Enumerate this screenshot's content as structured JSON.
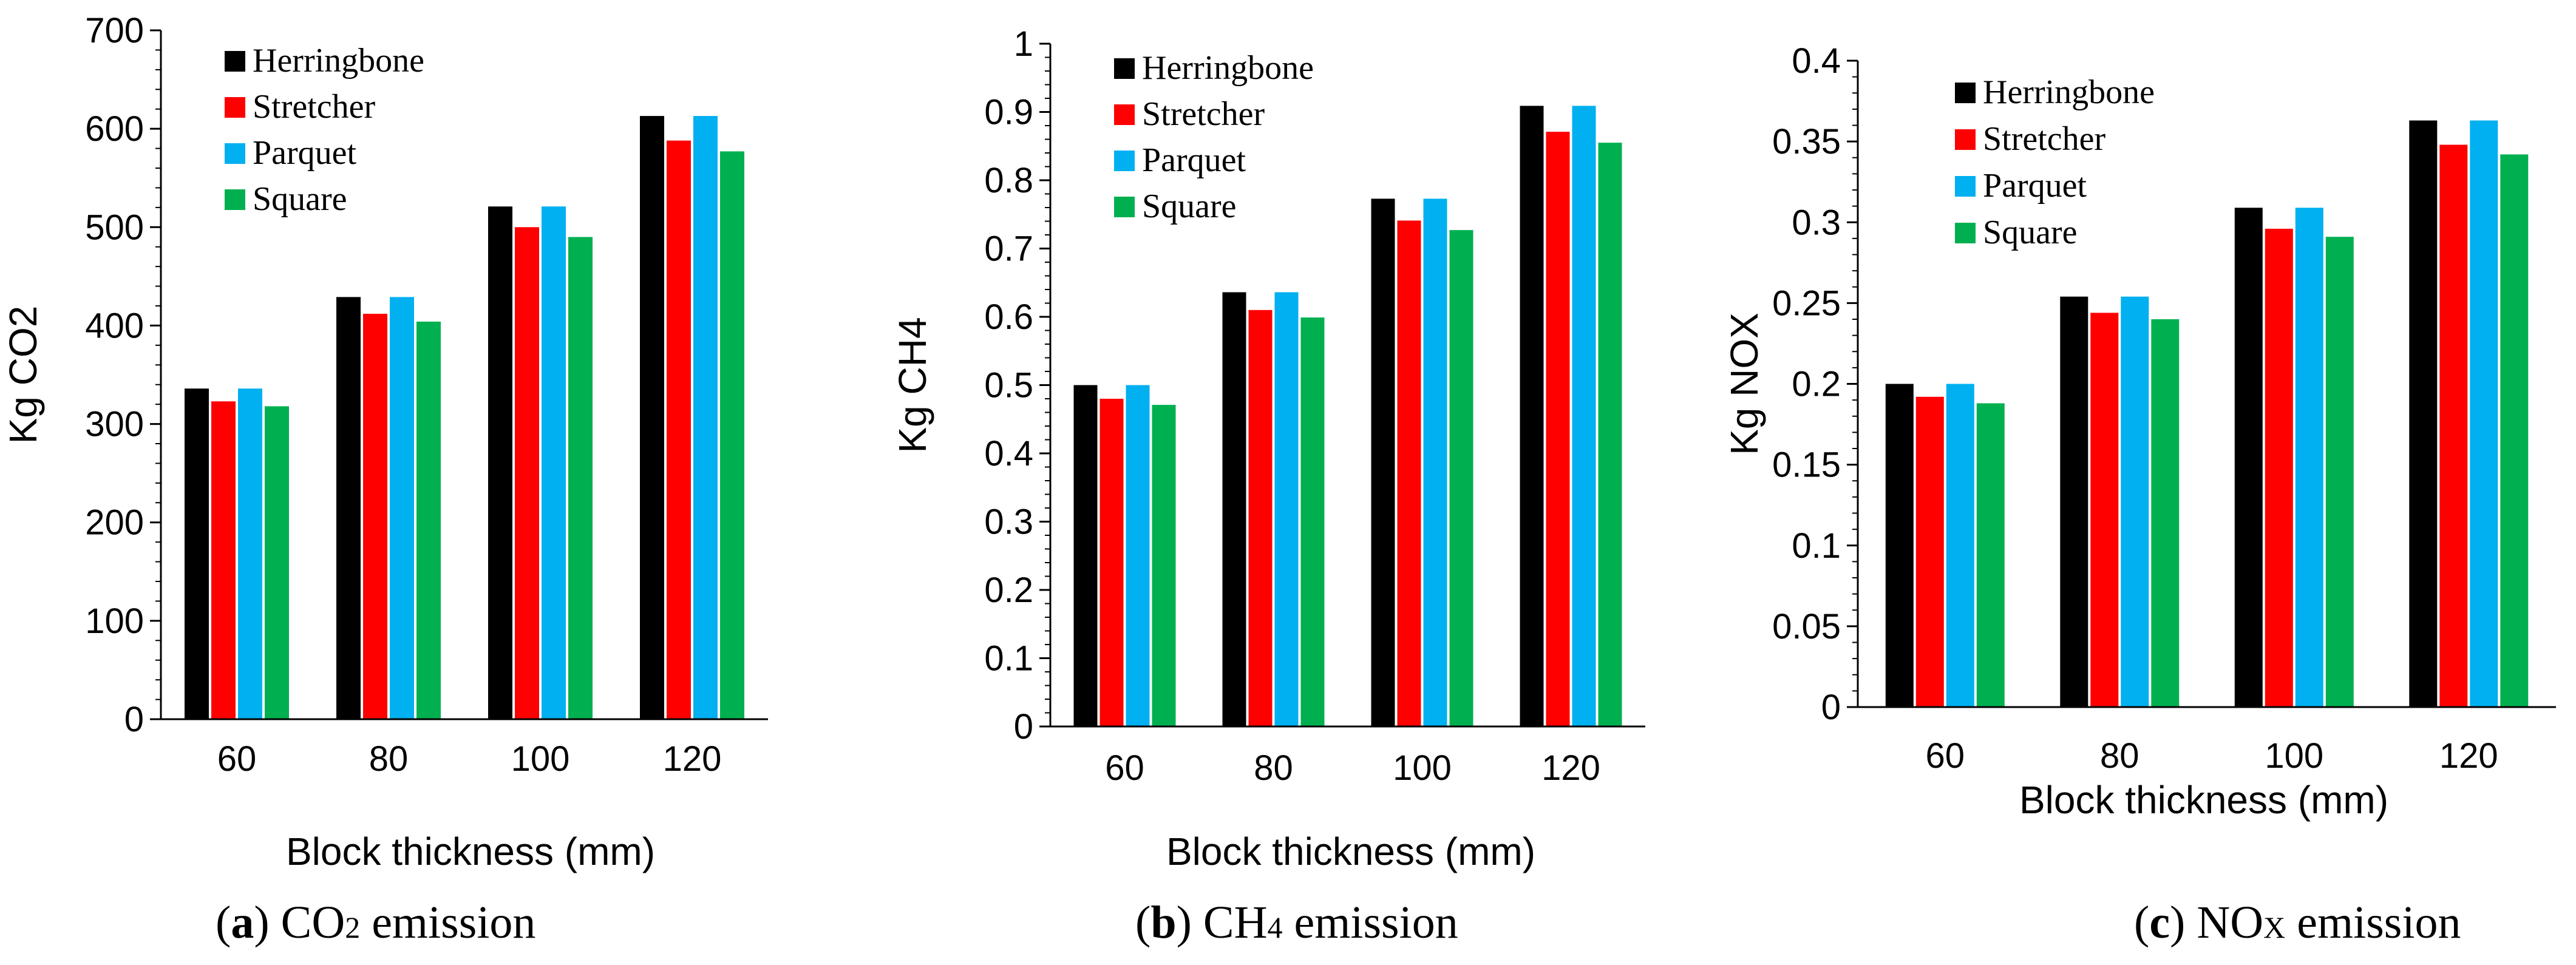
{
  "colors": {
    "Herringbone": "#000000",
    "Stretcher": "#ff0000",
    "Parquet": "#00b0f0",
    "Square": "#00b050"
  },
  "chart_data": [
    {
      "type": "bar",
      "title": "CO2 emission",
      "caption": {
        "open": "(",
        "letter": "a",
        "close": ")",
        "pre": " CO",
        "sub": "2",
        "post": " emission"
      },
      "xlabel": "Block thickness (mm)",
      "ylabel": "Kg CO2",
      "ylim": [
        0,
        700
      ],
      "yticks": [
        "0",
        "100",
        "200",
        "300",
        "400",
        "500",
        "600",
        "700"
      ],
      "categories": [
        "60",
        "80",
        "100",
        "120"
      ],
      "series": [
        {
          "name": "Herringbone",
          "values": [
            336,
            429,
            521,
            613
          ]
        },
        {
          "name": "Stretcher",
          "values": [
            323,
            412,
            500,
            588
          ]
        },
        {
          "name": "Parquet",
          "values": [
            336,
            429,
            521,
            613
          ]
        },
        {
          "name": "Square",
          "values": [
            318,
            404,
            490,
            577
          ]
        }
      ]
    },
    {
      "type": "bar",
      "title": "CH4 emission",
      "caption": {
        "open": "(",
        "letter": "b",
        "close": ")",
        "pre": " CH",
        "sub": "4",
        "post": " emission"
      },
      "xlabel": "Block thickness (mm)",
      "ylabel": "Kg CH4",
      "ylim": [
        0,
        1
      ],
      "yticks": [
        "0",
        "0.1",
        "0.2",
        "0.3",
        "0.4",
        "0.5",
        "0.6",
        "0.7",
        "0.8",
        "0.9",
        "1"
      ],
      "categories": [
        "60",
        "80",
        "100",
        "120"
      ],
      "series": [
        {
          "name": "Herringbone",
          "values": [
            0.5,
            0.636,
            0.773,
            0.909
          ]
        },
        {
          "name": "Stretcher",
          "values": [
            0.48,
            0.61,
            0.741,
            0.871
          ]
        },
        {
          "name": "Parquet",
          "values": [
            0.5,
            0.636,
            0.773,
            0.909
          ]
        },
        {
          "name": "Square",
          "values": [
            0.471,
            0.599,
            0.727,
            0.855
          ]
        }
      ]
    },
    {
      "type": "bar",
      "title": "NOx emission",
      "caption": {
        "open": "(",
        "letter": "c",
        "close": ")",
        "pre": " NO",
        "sub": "X",
        "post": " emission"
      },
      "xlabel": "Block thickness (mm)",
      "ylabel": "Kg NOX",
      "ylim": [
        0,
        0.4
      ],
      "yticks": [
        "0",
        "0.05",
        "0.1",
        "0.15",
        "0.2",
        "0.25",
        "0.3",
        "0.35",
        "0.4"
      ],
      "categories": [
        "60",
        "80",
        "100",
        "120"
      ],
      "series": [
        {
          "name": "Herringbone",
          "values": [
            0.2,
            0.254,
            0.309,
            0.363
          ]
        },
        {
          "name": "Stretcher",
          "values": [
            0.192,
            0.244,
            0.296,
            0.348
          ]
        },
        {
          "name": "Parquet",
          "values": [
            0.2,
            0.254,
            0.309,
            0.363
          ]
        },
        {
          "name": "Square",
          "values": [
            0.188,
            0.24,
            0.291,
            0.342
          ]
        }
      ]
    }
  ]
}
